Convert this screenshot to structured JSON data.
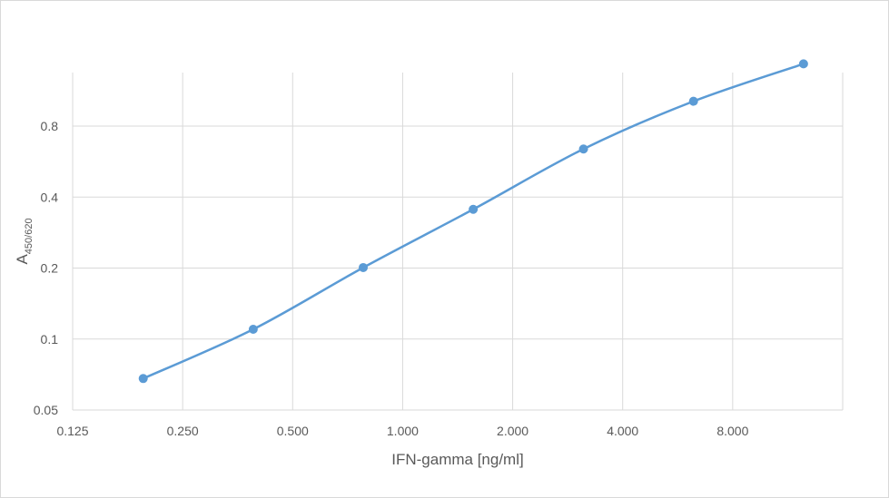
{
  "chart_data": {
    "type": "line",
    "title": "",
    "xlabel": "IFN-gamma [ng/ml]",
    "ylabel": "A",
    "ylabel_subscript": "450/620",
    "x_scale": "log2",
    "y_scale": "log2",
    "xlim": [
      0.125,
      16
    ],
    "ylim": [
      0.05,
      1.35
    ],
    "x_ticks": [
      0.125,
      0.25,
      0.5,
      1,
      2,
      4,
      8
    ],
    "x_tick_labels": [
      "0.125",
      "0.250",
      "0.500",
      "1.000",
      "2.000",
      "4.000",
      "8.000"
    ],
    "y_ticks": [
      0.05,
      0.1,
      0.2,
      0.4,
      0.8
    ],
    "y_tick_labels": [
      "0.05",
      "0.1",
      "0.2",
      "0.4",
      "0.8"
    ],
    "grid": true,
    "legend": "none",
    "series": [
      {
        "color": "#5b9bd5",
        "x": [
          0.195,
          0.39,
          0.78,
          1.56,
          3.125,
          6.25,
          12.5
        ],
        "y": [
          0.068,
          0.11,
          0.201,
          0.355,
          0.64,
          1.02,
          1.47
        ]
      }
    ]
  }
}
